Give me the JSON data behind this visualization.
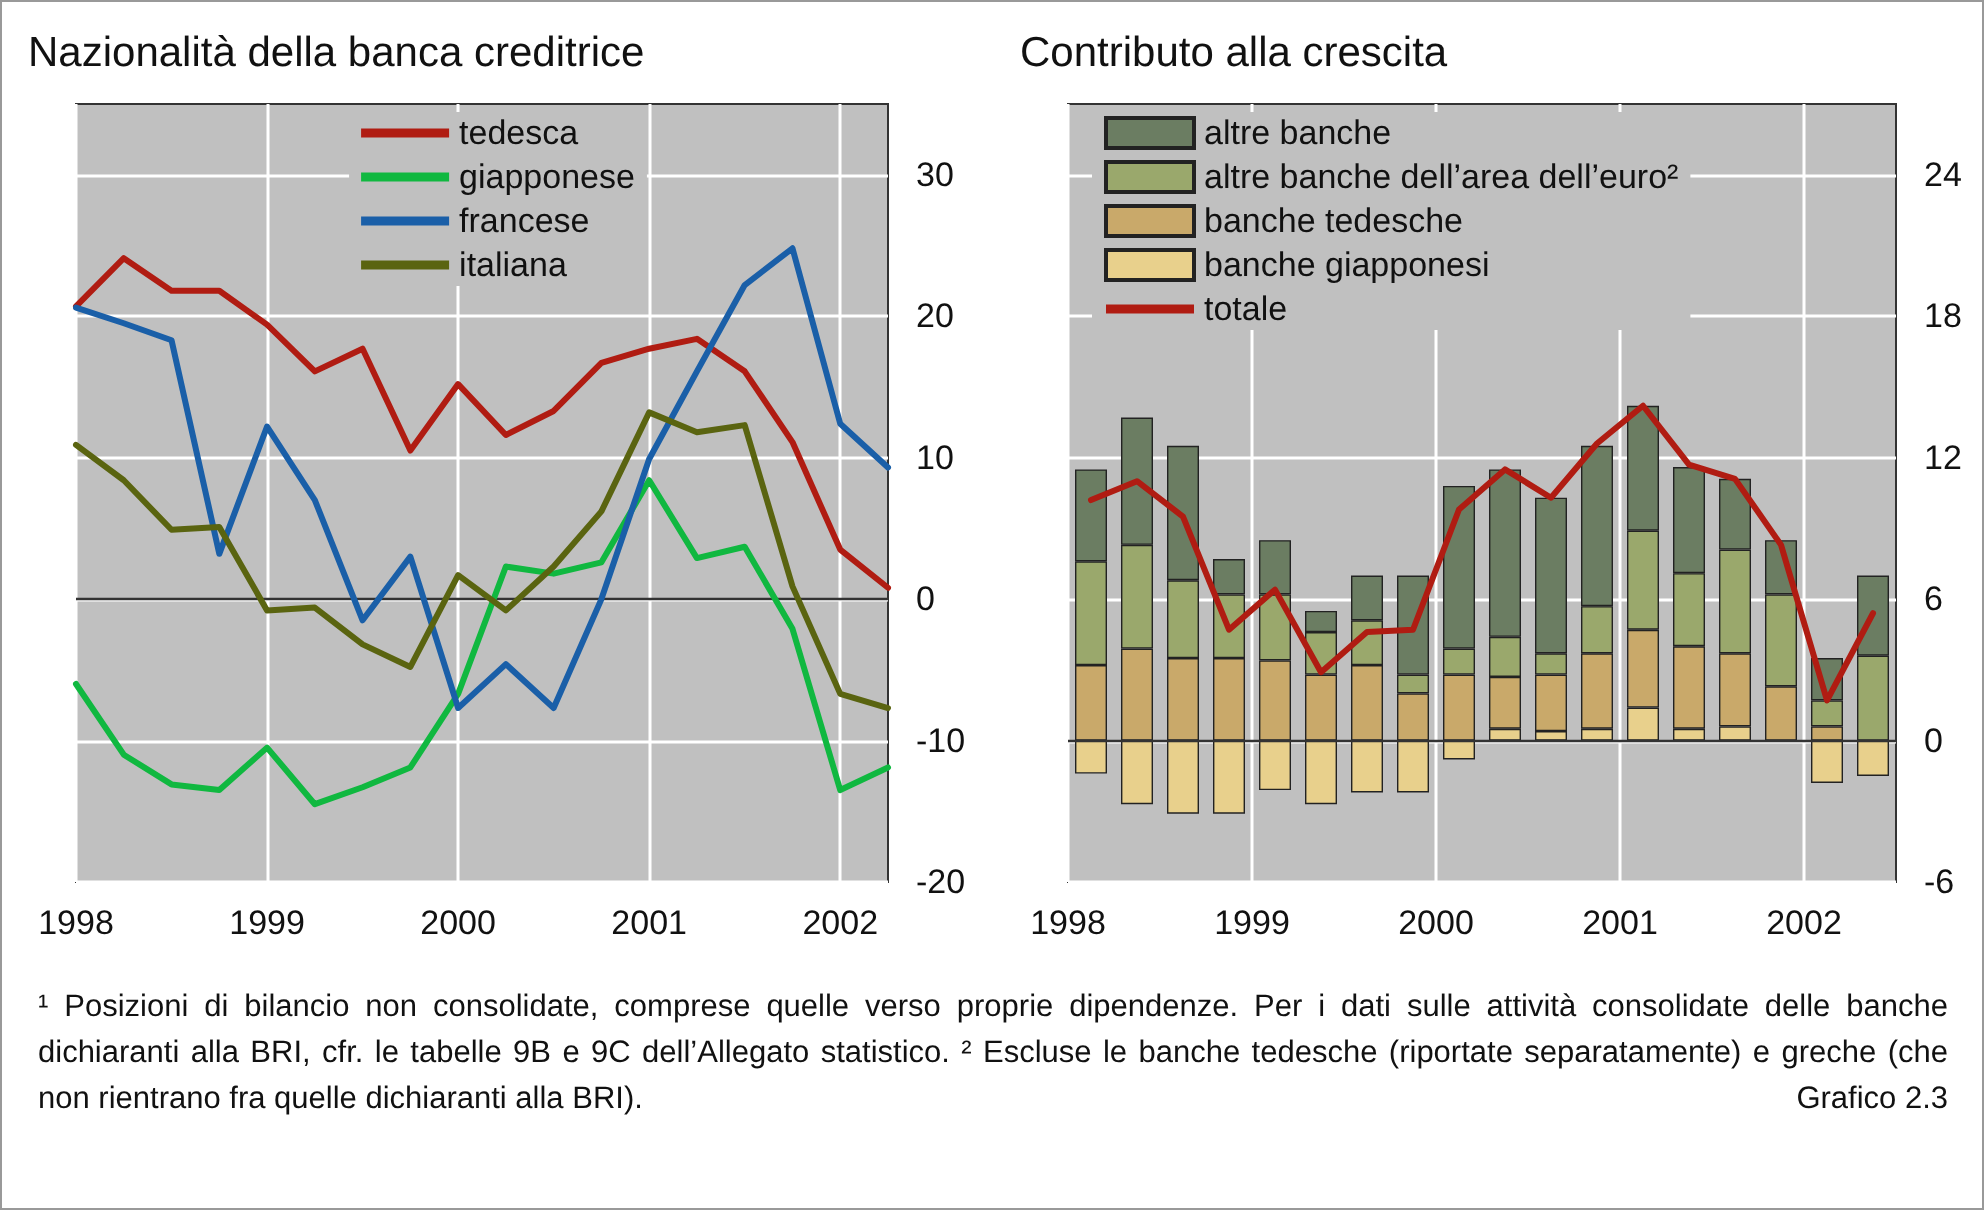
{
  "chart_data": [
    {
      "type": "line",
      "title": "Nazionalità della banca creditrice",
      "x": [
        1998,
        1998.25,
        1998.5,
        1998.75,
        1999,
        1999.25,
        1999.5,
        1999.75,
        2000,
        2000.25,
        2000.5,
        2000.75,
        2001,
        2001.25,
        2001.5,
        2001.75,
        2002,
        2002.25
      ],
      "series": [
        {
          "name": "tedesca",
          "color": "#b01c12",
          "values": [
            20.7,
            24.1,
            21.8,
            21.8,
            19.4,
            16.1,
            17.7,
            10.5,
            15.2,
            11.6,
            13.3,
            16.7,
            17.7,
            18.4,
            16.1,
            11.1,
            3.5,
            0.8
          ]
        },
        {
          "name": "giapponese",
          "color": "#10b840",
          "values": [
            -6.0,
            -11.0,
            -13.1,
            -13.5,
            -10.5,
            -14.5,
            -13.3,
            -11.9,
            -6.7,
            2.3,
            1.8,
            2.6,
            8.4,
            2.9,
            3.7,
            -2.1,
            -13.5,
            -11.9
          ]
        },
        {
          "name": "francese",
          "color": "#1a5fa8",
          "values": [
            20.6,
            19.5,
            18.3,
            3.2,
            12.2,
            7.0,
            -1.5,
            3.0,
            -7.7,
            -4.6,
            -7.7,
            0,
            9.9,
            16.1,
            22.2,
            24.8,
            12.4,
            9.3
          ]
        },
        {
          "name": "italiana",
          "color": "#5a6410",
          "values": [
            10.9,
            8.4,
            4.9,
            5.1,
            -0.8,
            -0.6,
            -3.2,
            -4.8,
            1.7,
            -0.8,
            2.3,
            6.2,
            13.2,
            11.8,
            12.3,
            0.9,
            -6.7,
            -7.7
          ]
        }
      ],
      "xlim": [
        1998,
        2002.25
      ],
      "xticks": [
        1998,
        1999,
        2000,
        2001,
        2002
      ],
      "ylim": [
        -20,
        35
      ],
      "yticks": [
        -20,
        -10,
        0,
        10,
        20,
        30
      ],
      "ref_lines": [
        {
          "axis": "y",
          "value": 0,
          "color": "#333333"
        }
      ],
      "grid": true,
      "legend": "top",
      "marker": "none",
      "line_style": "solid"
    },
    {
      "type": "bar",
      "title": "Contributo alla crescita",
      "stacked": true,
      "x": [
        1998.125,
        1998.375,
        1998.625,
        1998.875,
        1999.125,
        1999.375,
        1999.625,
        1999.875,
        2000.125,
        2000.375,
        2000.625,
        2000.875,
        2001.125,
        2001.375,
        2001.625,
        2001.875,
        2002.125,
        2002.375
      ],
      "series": [
        {
          "name": "banche giapponesi",
          "color": "#e8d08c",
          "values": [
            -1.4,
            -2.7,
            -3.1,
            -3.1,
            -2.1,
            -2.7,
            -2.2,
            -2.2,
            -0.8,
            0.5,
            0.4,
            0.5,
            1.4,
            0.5,
            0.6,
            null,
            -1.8,
            -1.5
          ]
        },
        {
          "name": "banche tedesche",
          "color": "#c9a96a",
          "values": [
            3.2,
            3.9,
            3.5,
            3.5,
            3.4,
            2.8,
            3.2,
            2.0,
            2.8,
            2.2,
            2.4,
            3.2,
            3.3,
            3.5,
            3.1,
            2.3,
            0.6,
            null
          ]
        },
        {
          "name": "altre banche dell’area dell’euro²",
          "color": "#9aa86c",
          "values": [
            4.4,
            4.4,
            3.3,
            2.7,
            2.8,
            1.8,
            1.9,
            0.8,
            1.1,
            1.7,
            0.9,
            2.0,
            4.2,
            3.1,
            4.4,
            3.9,
            1.1,
            3.6
          ]
        },
        {
          "name": "altre banche",
          "color": "#6b7d62",
          "values": [
            3.9,
            5.4,
            5.7,
            1.5,
            2.3,
            0.9,
            1.9,
            4.2,
            6.9,
            7.1,
            6.6,
            6.8,
            5.3,
            4.5,
            3.0,
            2.3,
            1.8,
            3.4
          ]
        },
        {
          "name": "totale",
          "type": "line",
          "color": "#b01c12",
          "values": [
            10.2,
            11.0,
            9.5,
            4.7,
            6.4,
            2.9,
            4.6,
            4.7,
            9.8,
            11.5,
            10.3,
            12.6,
            14.2,
            11.7,
            11.1,
            8.3,
            1.7,
            5.4
          ]
        }
      ],
      "xlim": [
        1998,
        2002.5
      ],
      "xticks": [
        1998,
        1999,
        2000,
        2001,
        2002
      ],
      "ylim": [
        -6,
        27
      ],
      "yticks": [
        -6,
        0,
        6,
        12,
        18,
        24
      ],
      "ref_lines": [
        {
          "axis": "y",
          "value": 0,
          "color": "#333333"
        }
      ],
      "grid": true,
      "legend": "top left",
      "marker": "none",
      "line_style": "solid",
      "annotations": [
        "¹ Posizioni di bilancio non consolidate, comprese quelle verso proprie dipendenze. Per i dati sulle attività consolidate delle banche dichiaranti alla BRI, cfr. le tabelle 9B e 9C dell’Allegato statistico.  ² Escluse le banche tedesche (riportate separatamente) e greche (che non rientrano fra quelle dichiaranti alla BRI).",
        "Grafico 2.3"
      ]
    }
  ]
}
